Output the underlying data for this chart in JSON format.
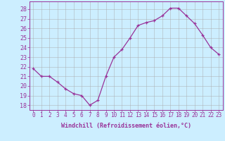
{
  "x": [
    0,
    1,
    2,
    3,
    4,
    5,
    6,
    7,
    8,
    9,
    10,
    11,
    12,
    13,
    14,
    15,
    16,
    17,
    18,
    19,
    20,
    21,
    22,
    23
  ],
  "y": [
    21.8,
    21.0,
    21.0,
    20.4,
    19.7,
    19.2,
    19.0,
    18.0,
    18.5,
    21.0,
    23.0,
    23.8,
    25.0,
    26.3,
    26.6,
    26.8,
    27.3,
    28.1,
    28.1,
    27.3,
    26.5,
    25.3,
    24.0,
    23.3
  ],
  "color": "#993399",
  "bg_color": "#cceeff",
  "grid_color": "#aaaaaa",
  "xlim": [
    -0.5,
    23.5
  ],
  "ylim": [
    17.5,
    28.8
  ],
  "yticks": [
    18,
    19,
    20,
    21,
    22,
    23,
    24,
    25,
    26,
    27,
    28
  ],
  "xticks": [
    0,
    1,
    2,
    3,
    4,
    5,
    6,
    7,
    8,
    9,
    10,
    11,
    12,
    13,
    14,
    15,
    16,
    17,
    18,
    19,
    20,
    21,
    22,
    23
  ],
  "xlabel": "Windchill (Refroidissement éolien,°C)",
  "tick_fontsize": 5.5,
  "xlabel_fontsize": 6.0
}
